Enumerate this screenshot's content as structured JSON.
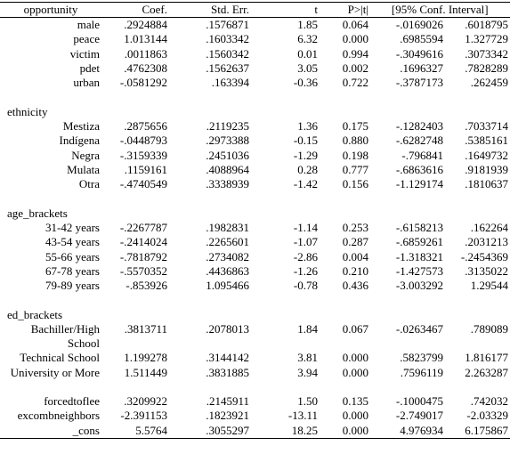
{
  "table": {
    "headers": [
      "opportunity",
      "Coef.",
      "Std. Err.",
      "t",
      "P>|t|",
      "[95% Conf. Interval]"
    ],
    "sections": [
      {
        "group": "",
        "rows": [
          {
            "label": "male",
            "coef": ".2924884",
            "se": ".1576871",
            "t": "1.85",
            "p": "0.064",
            "lo": "-.0169026",
            "hi": ".6018795"
          },
          {
            "label": "peace",
            "coef": "1.013144",
            "se": ".1603342",
            "t": "6.32",
            "p": "0.000",
            "lo": ".6985594",
            "hi": "1.327729"
          },
          {
            "label": "victim",
            "coef": ".0011863",
            "se": ".1560342",
            "t": "0.01",
            "p": "0.994",
            "lo": "-.3049616",
            "hi": ".3073342"
          },
          {
            "label": "pdet",
            "coef": ".4762308",
            "se": ".1562637",
            "t": "3.05",
            "p": "0.002",
            "lo": ".1696327",
            "hi": ".7828289"
          },
          {
            "label": "urban",
            "coef": "-.0581292",
            "se": ".163394",
            "t": "-0.36",
            "p": "0.722",
            "lo": "-.3787173",
            "hi": ".262459"
          }
        ]
      },
      {
        "group": "ethnicity",
        "rows": [
          {
            "label": "Mestiza",
            "coef": ".2875656",
            "se": ".2119235",
            "t": "1.36",
            "p": "0.175",
            "lo": "-.1282403",
            "hi": ".7033714"
          },
          {
            "label": "Indígena",
            "coef": "-.0448793",
            "se": ".2973388",
            "t": "-0.15",
            "p": "0.880",
            "lo": "-.6282748",
            "hi": ".5385161"
          },
          {
            "label": "Negra",
            "coef": "-.3159339",
            "se": ".2451036",
            "t": "-1.29",
            "p": "0.198",
            "lo": "-.796841",
            "hi": ".1649732"
          },
          {
            "label": "Mulata",
            "coef": ".1159161",
            "se": ".4088964",
            "t": "0.28",
            "p": "0.777",
            "lo": "-.6863616",
            "hi": ".9181939"
          },
          {
            "label": "Otra",
            "coef": "-.4740549",
            "se": ".3338939",
            "t": "-1.42",
            "p": "0.156",
            "lo": "-1.129174",
            "hi": ".1810637"
          }
        ]
      },
      {
        "group": "age_brackets",
        "rows": [
          {
            "label": "31-42 years",
            "coef": "-.2267787",
            "se": ".1982831",
            "t": "-1.14",
            "p": "0.253",
            "lo": "-.6158213",
            "hi": ".162264"
          },
          {
            "label": "43-54 years",
            "coef": "-.2414024",
            "se": ".2265601",
            "t": "-1.07",
            "p": "0.287",
            "lo": "-.6859261",
            "hi": ".2031213"
          },
          {
            "label": "55-66 years",
            "coef": "-.7818792",
            "se": ".2734082",
            "t": "-2.86",
            "p": "0.004",
            "lo": "-1.318321",
            "hi": "-.2454369"
          },
          {
            "label": "67-78 years",
            "coef": "-.5570352",
            "se": ".4436863",
            "t": "-1.26",
            "p": "0.210",
            "lo": "-1.427573",
            "hi": ".3135022"
          },
          {
            "label": "79-89 years",
            "coef": "-.853926",
            "se": "1.095466",
            "t": "-0.78",
            "p": "0.436",
            "lo": "-3.003292",
            "hi": "1.29544"
          }
        ]
      },
      {
        "group": "ed_brackets",
        "rows": [
          {
            "label": "Bachiller/High School",
            "coef": ".3813711",
            "se": ".2078013",
            "t": "1.84",
            "p": "0.067",
            "lo": "-.0263467",
            "hi": ".789089"
          },
          {
            "label": "Technical School",
            "coef": "1.199278",
            "se": ".3144142",
            "t": "3.81",
            "p": "0.000",
            "lo": ".5823799",
            "hi": "1.816177"
          },
          {
            "label": "University or More",
            "coef": "1.511449",
            "se": ".3831885",
            "t": "3.94",
            "p": "0.000",
            "lo": ".7596119",
            "hi": "2.263287"
          }
        ]
      },
      {
        "group": "",
        "rows": [
          {
            "label": "forcedtoflee",
            "coef": ".3209922",
            "se": ".2145911",
            "t": "1.50",
            "p": "0.135",
            "lo": "-.1000475",
            "hi": ".742032"
          },
          {
            "label": "excombneighbors",
            "coef": "-2.391153",
            "se": ".1823921",
            "t": "-13.11",
            "p": "0.000",
            "lo": "-2.749017",
            "hi": "-2.03329"
          },
          {
            "label": "_cons",
            "coef": "5.5764",
            "se": ".3055297",
            "t": "18.25",
            "p": "0.000",
            "lo": "4.976934",
            "hi": "6.175867"
          }
        ]
      }
    ]
  }
}
